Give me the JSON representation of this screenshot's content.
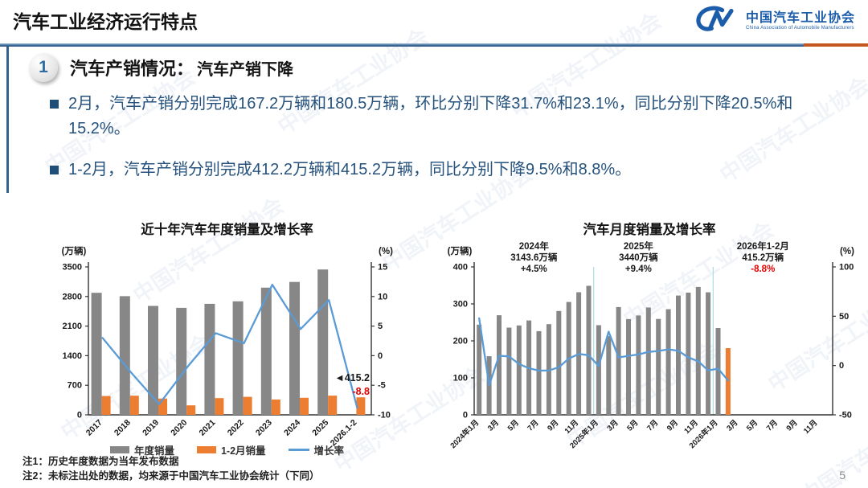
{
  "header": {
    "title": "汽车工业经济运行特点",
    "logo_cn": "中国汽车工业协会",
    "logo_en": "China Association of Automobile Manufacturers"
  },
  "section": {
    "number": "1",
    "heading": "汽车产销情况：",
    "subheading": "汽车产销下降"
  },
  "bullets": [
    "2月，汽车产销分别完成167.2万辆和180.5万辆，环比分别下降31.7%和23.1%，同比分别下降20.5%和15.2%。",
    "1-2月，汽车产销分别完成412.2万辆和415.2万辆，同比分别下降9.5%和8.8%。"
  ],
  "footnotes": [
    "注1：历史年度数据为当年发布数据",
    "注2：未标注出处的数据，均来源于中国汽车工业协会统计（下同）"
  ],
  "page_number": "5",
  "watermark_text": "中国汽车工业协会",
  "colors": {
    "accent_blue": "#35618f",
    "accent_orange": "#c3561f",
    "navy_text": "#26527c",
    "bar_gray": "#878787",
    "bar_orange": "#ED7D31",
    "line_blue": "#5B9BD5",
    "negative_red": "#e60000"
  },
  "chart_data": [
    {
      "type": "bar+line",
      "title": "近十年汽车年度销量及增长率",
      "y_label": "(万辆)",
      "y2_label": "(%)",
      "ylim": [
        0,
        3500
      ],
      "y_ticks": [
        0,
        700,
        1400,
        2100,
        2800,
        3500
      ],
      "y2lim": [
        -10,
        15
      ],
      "y2_ticks": [
        -10,
        -5,
        0,
        5,
        10,
        15
      ],
      "categories": [
        "2017",
        "2018",
        "2019",
        "2020",
        "2021",
        "2022",
        "2023",
        "2024",
        "2025",
        "2026.1-2"
      ],
      "series": [
        {
          "name": "年度销量",
          "type": "bar",
          "color": "#878787",
          "values": [
            2887.9,
            2808.1,
            2576.9,
            2531.1,
            2627.5,
            2686.4,
            3009.4,
            3143.6,
            3440,
            null
          ]
        },
        {
          "name": "1-2月销量",
          "type": "bar",
          "color": "#ED7D31",
          "values": [
            445.9,
            452.7,
            385.2,
            223.8,
            395.8,
            426.8,
            362.5,
            402.6,
            455.3,
            415.2
          ]
        },
        {
          "name": "增长率",
          "type": "line",
          "color": "#5B9BD5",
          "axis": "y2",
          "values": [
            3.0,
            -2.8,
            -8.2,
            -1.9,
            3.8,
            2.1,
            12.0,
            4.5,
            9.4,
            -8.8
          ]
        }
      ],
      "end_labels": [
        {
          "text": "◄415.2",
          "color": "#1a1a1a",
          "y2": -4.3
        },
        {
          "text": "-8.8",
          "color": "#e60000",
          "y2": -6.6
        }
      ],
      "legend": true
    },
    {
      "type": "bar+line",
      "title": "汽车月度销量及增长率",
      "y_label": "(万辆)",
      "y2_label": "(%)",
      "ylim": [
        0,
        400
      ],
      "y_ticks": [
        0,
        100,
        200,
        300,
        400
      ],
      "y2lim": [
        -50,
        100
      ],
      "y2_ticks": [
        -50,
        0,
        50,
        100
      ],
      "n_slots": 36,
      "x_tick_every": 2,
      "x_tick_labels": [
        "2024年1月",
        "3月",
        "5月",
        "7月",
        "9月",
        "11月",
        "2025年1月",
        "3月",
        "5月",
        "7月",
        "9月",
        "11月",
        "2026年1月",
        "3月",
        "5月",
        "7月",
        "9月",
        "11月"
      ],
      "series": [
        {
          "name": "月度销量",
          "type": "bar",
          "color": "#878787",
          "colors_override": {
            "25": "#ED7D31"
          },
          "values": [
            243.9,
            158.4,
            269.4,
            235.9,
            241.7,
            255.2,
            226.2,
            245.3,
            280.9,
            305.3,
            331.6,
            348.9,
            242.3,
            212.9,
            291.5,
            259.0,
            268.6,
            290.4,
            259.3,
            285.7,
            322.6,
            330.5,
            345.8,
            331.4,
            234.7,
            180.5
          ]
        },
        {
          "name": "增长率",
          "type": "line",
          "color": "#5B9BD5",
          "axis": "y2",
          "values": [
            47.9,
            -19.9,
            9.9,
            9.3,
            1.5,
            -2.7,
            -5.2,
            -5.0,
            -1.7,
            7.0,
            11.7,
            10.5,
            -0.6,
            34.4,
            8.2,
            9.8,
            11.2,
            13.8,
            14.7,
            16.4,
            14.9,
            8.3,
            4.3,
            -5.0,
            -3.1,
            -15.2
          ]
        }
      ],
      "separators": [
        12,
        24
      ],
      "period_labels": [
        {
          "lines": [
            "2024年",
            "3143.6万辆",
            "+4.5%"
          ],
          "slot": 6,
          "accent": "#1a1a1a"
        },
        {
          "lines": [
            "2025年",
            "3440万辆",
            "+9.4%"
          ],
          "slot": 16.5,
          "accent": "#1a1a1a"
        },
        {
          "lines": [
            "2026年1-2月",
            "415.2万辆",
            "-8.8%"
          ],
          "slot": 29,
          "accent": "#e60000"
        }
      ],
      "legend": false
    }
  ]
}
